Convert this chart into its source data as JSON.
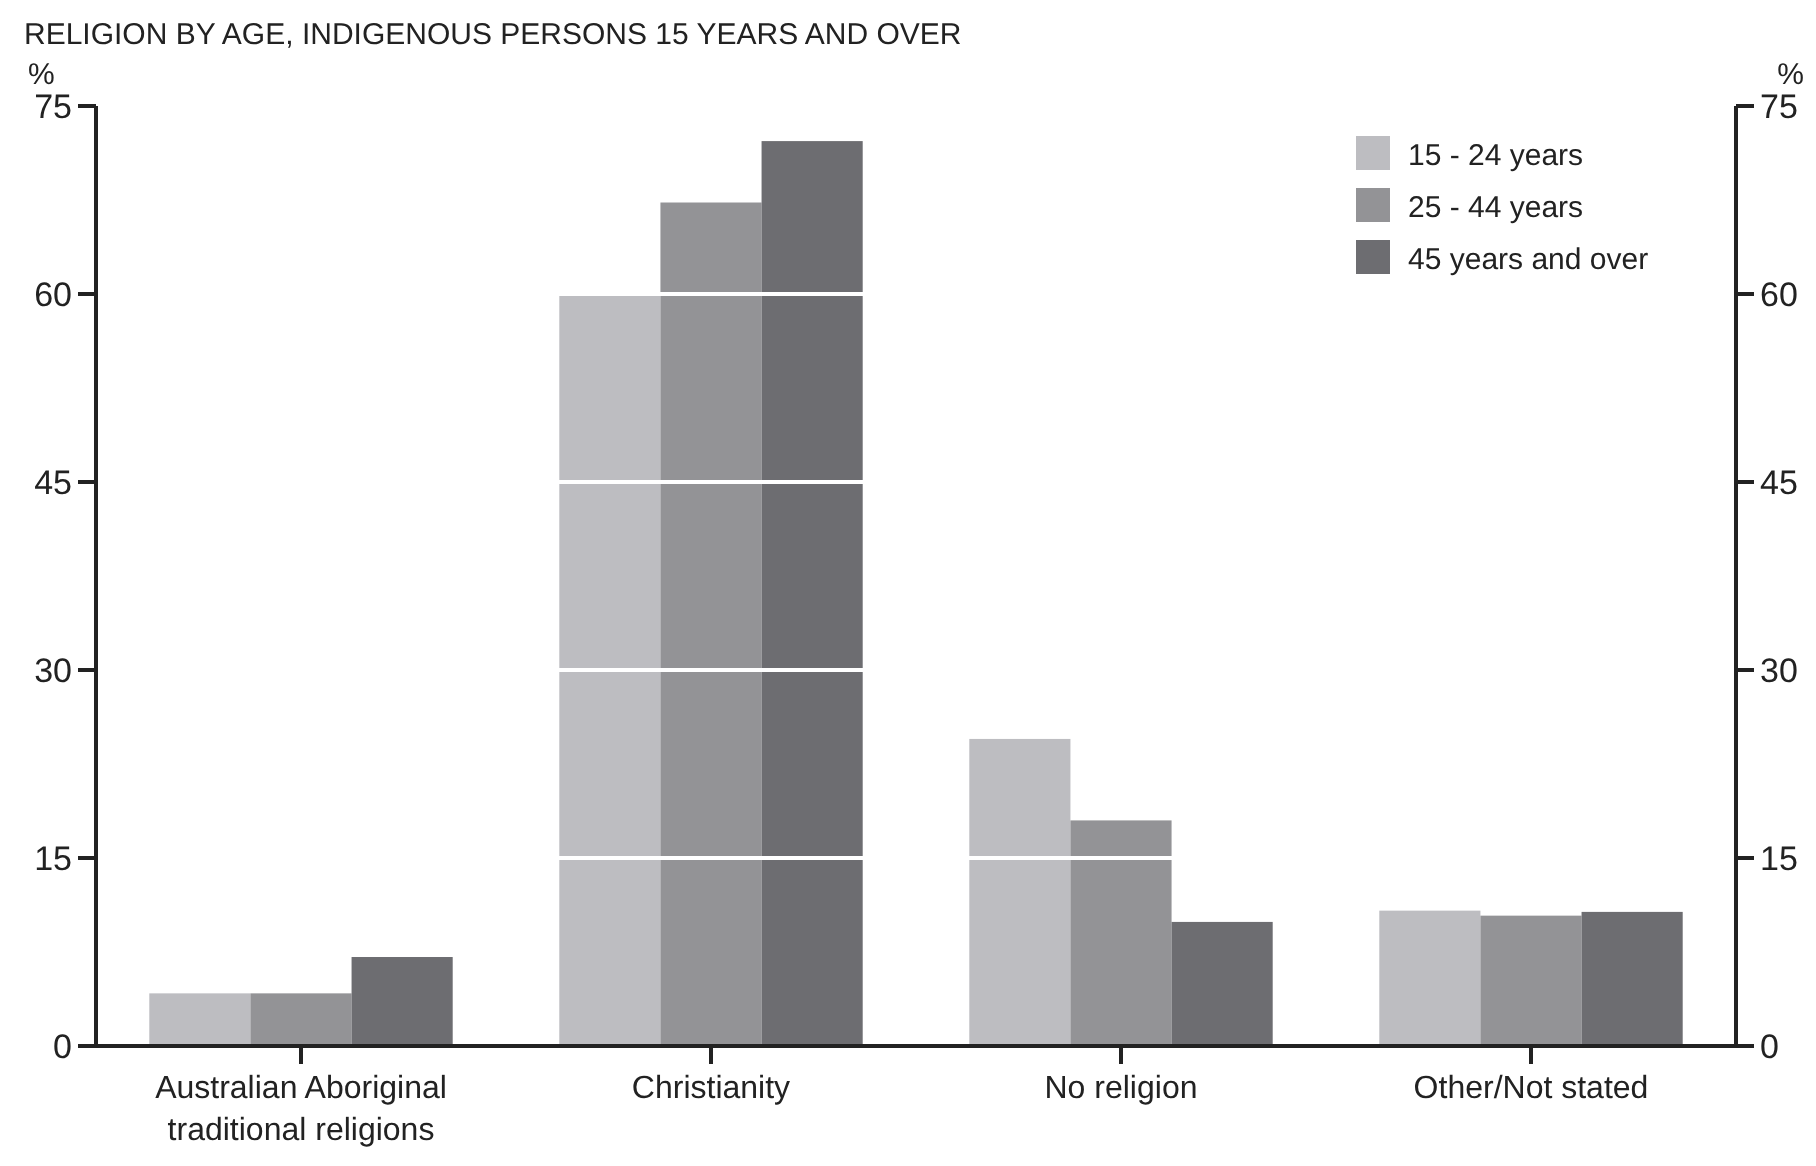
{
  "chart_data": {
    "type": "bar",
    "title": "RELIGION BY AGE, INDIGENOUS PERSONS 15 YEARS AND OVER",
    "ylabel": "%",
    "y2label": "%",
    "categories": [
      "Australian Aboriginal traditional religions",
      "Christianity",
      "No religion",
      "Other/Not stated"
    ],
    "series": [
      {
        "name": "15 - 24 years",
        "color": "#bdbdc1",
        "values": [
          4.2,
          60.1,
          24.5,
          10.8
        ]
      },
      {
        "name": "25 - 44 years",
        "color": "#939396",
        "values": [
          4.2,
          67.3,
          18.0,
          10.4
        ]
      },
      {
        "name": "45 years and over",
        "color": "#6d6d71",
        "values": [
          7.1,
          72.2,
          9.9,
          10.7
        ]
      }
    ],
    "ylim": [
      0,
      75
    ],
    "yticks": [
      0,
      15,
      30,
      45,
      60,
      75
    ],
    "y2lim": [
      0,
      75
    ],
    "y2ticks": [
      0,
      15,
      30,
      45,
      60,
      75
    ],
    "grid": "y",
    "legend": "top right"
  }
}
